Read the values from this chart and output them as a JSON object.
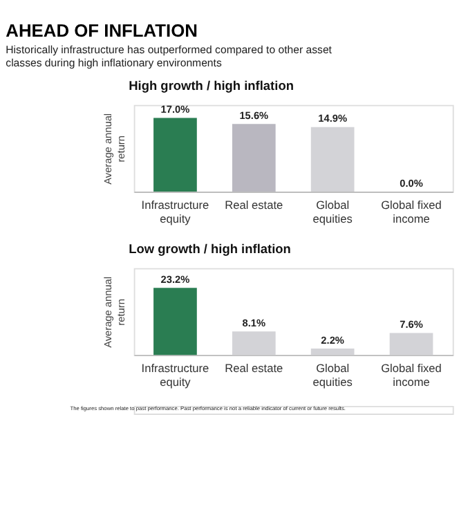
{
  "chart_data": [
    {
      "type": "other",
      "title": "AHEAD OF INFLATION",
      "subtitle": "Historically infrastructure has outperformed compared to other asset classes during high inflationary environments"
    },
    {
      "type": "bar",
      "title": "High growth / high inflation",
      "ylabel": "Average annual return",
      "categories": [
        "Infrastructure equity",
        "Real estate",
        "Global equities",
        "Global fixed income"
      ],
      "values": [
        17.0,
        15.6,
        14.9,
        0.0
      ],
      "value_labels": [
        "17.0%",
        "15.6%",
        "14.9%",
        "0.0%"
      ],
      "colors": [
        "#2a7d52",
        "#b9b7c0",
        "#d3d3d7",
        "#d3d3d7"
      ],
      "ylim": [
        0,
        20
      ],
      "tick_labels": "x"
    },
    {
      "type": "bar",
      "title": "Low growth / high inflation",
      "ylabel": "Average annual return",
      "categories": [
        "Infrastructure equity",
        "Real estate",
        "Global equities",
        "Global fixed income"
      ],
      "values": [
        23.2,
        8.1,
        2.2,
        7.6
      ],
      "value_labels": [
        "23.2%",
        "8.1%",
        "2.2%",
        "7.6%"
      ],
      "colors": [
        "#2a7d52",
        "#d3d3d7",
        "#d3d3d7",
        "#d3d3d7"
      ],
      "ylim": [
        0,
        30
      ],
      "tick_labels": "x",
      "annotations": [
        "The figures shown relate to past performance. Past performance is not a reliable indicator of current or future results."
      ]
    }
  ]
}
